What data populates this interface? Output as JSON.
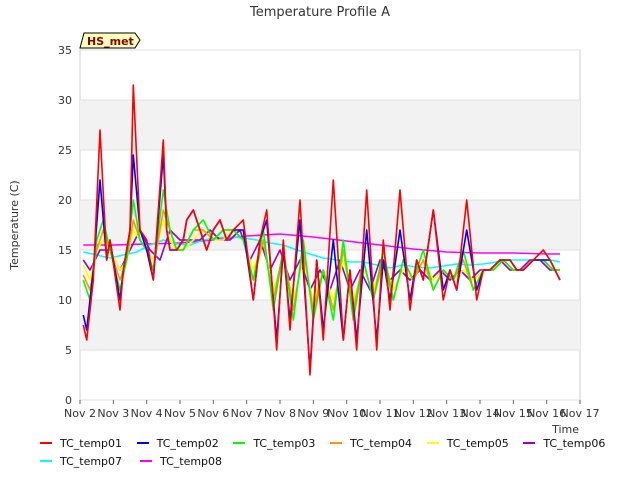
{
  "chart_data": {
    "type": "line",
    "title": "Temperature Profile A",
    "ylabel": "Temperature (C)",
    "xlabel": "Time",
    "badge": "HS_met",
    "ylim": [
      0,
      35
    ],
    "yticks": [
      0,
      5,
      10,
      15,
      20,
      25,
      30,
      35
    ],
    "xlim": [
      0,
      15
    ],
    "xtick_labels": [
      "Nov 2",
      "Nov 3",
      "Nov 4",
      "Nov 5",
      "Nov 6",
      "Nov 7",
      "Nov 8",
      "Nov 9",
      "Nov 10",
      "Nov 11",
      "Nov 12",
      "Nov 13",
      "Nov 14",
      "Nov 15",
      "Nov 16",
      "Nov 17"
    ],
    "grid": true,
    "legend_position": "bottom",
    "series": [
      {
        "name": "TC_temp01",
        "color": "#ff0000",
        "x": [
          0.1,
          0.2,
          0.4,
          0.6,
          0.8,
          0.9,
          1.2,
          1.3,
          1.5,
          1.6,
          1.8,
          2.0,
          2.2,
          2.5,
          2.6,
          2.7,
          2.9,
          3.1,
          3.2,
          3.4,
          3.6,
          3.8,
          4.0,
          4.2,
          4.4,
          4.6,
          4.9,
          5.2,
          5.4,
          5.6,
          5.9,
          6.1,
          6.3,
          6.6,
          6.9,
          7.1,
          7.3,
          7.6,
          7.9,
          8.1,
          8.3,
          8.6,
          8.9,
          9.1,
          9.3,
          9.6,
          9.9,
          10.1,
          10.3,
          10.6,
          10.9,
          11.1,
          11.3,
          11.6,
          11.9,
          12.1,
          12.3,
          12.6,
          12.9,
          13.1,
          13.3,
          13.6,
          13.9,
          14.1,
          14.4
        ],
        "values": [
          7.5,
          6,
          12,
          27,
          14,
          16,
          9,
          13,
          17,
          31.5,
          17,
          16,
          12,
          26,
          17,
          15,
          15,
          16,
          18,
          19,
          17,
          15,
          17,
          18,
          16,
          17,
          18,
          10,
          16,
          19,
          5,
          16,
          7,
          20,
          2.5,
          14,
          6,
          22,
          6,
          13,
          5,
          21,
          5,
          16,
          9,
          21,
          9,
          14,
          12,
          19,
          10,
          13,
          11,
          20,
          10,
          13,
          13,
          14,
          14,
          13,
          13,
          14,
          15,
          14,
          12
        ]
      },
      {
        "name": "TC_temp02",
        "color": "#0000ff",
        "x": [
          0.1,
          0.2,
          0.4,
          0.6,
          0.8,
          0.9,
          1.2,
          1.3,
          1.5,
          1.6,
          1.8,
          2.0,
          2.2,
          2.5,
          2.6,
          2.7,
          2.9,
          3.1,
          3.2,
          3.4,
          3.6,
          3.8,
          4.0,
          4.2,
          4.4,
          4.6,
          4.9,
          5.2,
          5.4,
          5.6,
          5.9,
          6.1,
          6.3,
          6.6,
          6.9,
          7.1,
          7.3,
          7.6,
          7.9,
          8.1,
          8.3,
          8.6,
          8.9,
          9.1,
          9.3,
          9.6,
          9.9,
          10.1,
          10.3,
          10.6,
          10.9,
          11.1,
          11.3,
          11.6,
          11.9,
          12.1,
          12.3,
          12.6,
          12.9,
          13.1,
          13.3,
          13.6,
          13.9,
          14.1,
          14.4
        ],
        "values": [
          8.5,
          7,
          13,
          22,
          14,
          16,
          10,
          13,
          17,
          24.5,
          17,
          15,
          12,
          24.5,
          17,
          15,
          15,
          16,
          18,
          19,
          17,
          15,
          17,
          18,
          16,
          17,
          17,
          10,
          16,
          18,
          6,
          15,
          8,
          18,
          3,
          14,
          7,
          16,
          6,
          13,
          6,
          17,
          6,
          14,
          10,
          17,
          10,
          14,
          12,
          19,
          11,
          13,
          11,
          17,
          11,
          13,
          13,
          14,
          14,
          13,
          13,
          14,
          14,
          14,
          12
        ]
      },
      {
        "name": "TC_temp03",
        "color": "#00ff00",
        "x": [
          0.1,
          0.3,
          0.5,
          0.7,
          0.9,
          1.2,
          1.4,
          1.6,
          1.8,
          2.0,
          2.2,
          2.5,
          2.7,
          2.9,
          3.1,
          3.4,
          3.7,
          4.0,
          4.3,
          4.6,
          4.9,
          5.2,
          5.5,
          5.8,
          6.1,
          6.4,
          6.7,
          7.0,
          7.3,
          7.6,
          7.9,
          8.2,
          8.5,
          8.8,
          9.1,
          9.4,
          9.7,
          10.0,
          10.3,
          10.6,
          10.9,
          11.2,
          11.5,
          11.8,
          12.1,
          12.4,
          12.7,
          13.0,
          13.3,
          13.6,
          13.9,
          14.2,
          14.4
        ],
        "values": [
          12,
          10,
          16,
          18,
          15,
          11,
          14,
          20,
          16,
          15,
          13,
          21,
          17,
          15,
          15,
          17,
          18,
          16,
          17,
          17,
          16,
          12,
          17,
          9,
          15,
          8,
          16,
          8,
          13,
          8,
          16,
          8,
          14,
          10,
          15,
          10,
          14,
          12,
          15,
          11,
          13,
          12,
          15,
          11,
          13,
          13,
          14,
          13,
          13,
          14,
          14,
          13,
          13
        ]
      },
      {
        "name": "TC_temp04",
        "color": "#ff9900",
        "x": [
          0.1,
          0.3,
          0.5,
          0.7,
          0.9,
          1.2,
          1.4,
          1.6,
          1.8,
          2.0,
          2.2,
          2.5,
          2.7,
          2.9,
          3.1,
          3.4,
          3.7,
          4.0,
          4.3,
          4.6,
          4.9,
          5.2,
          5.5,
          5.8,
          6.1,
          6.4,
          6.7,
          7.0,
          7.3,
          7.6,
          7.9,
          8.2,
          8.5,
          8.8,
          9.1,
          9.4,
          9.7,
          10.0,
          10.3,
          10.6,
          10.9,
          11.2,
          11.5,
          11.8,
          12.1,
          12.4,
          12.7,
          13.0,
          13.3,
          13.6,
          13.9,
          14.2,
          14.4
        ],
        "values": [
          12.5,
          11,
          15,
          17,
          15,
          12,
          14,
          18,
          16,
          15,
          13,
          19,
          17,
          15,
          15,
          17,
          17,
          16,
          17,
          17,
          16,
          12,
          16,
          10,
          15,
          9,
          15,
          9,
          13,
          9,
          15,
          9,
          14,
          10,
          14,
          10,
          14,
          12,
          14,
          11,
          13,
          12,
          14,
          11,
          13,
          13,
          14,
          13,
          13,
          14,
          14,
          13,
          13
        ]
      },
      {
        "name": "TC_temp05",
        "color": "#ffff00",
        "x": [
          0.1,
          0.3,
          0.5,
          0.7,
          0.9,
          1.2,
          1.4,
          1.6,
          1.8,
          2.0,
          2.2,
          2.5,
          2.7,
          2.9,
          3.1,
          3.4,
          3.7,
          4.0,
          4.3,
          4.6,
          4.9,
          5.2,
          5.5,
          5.8,
          6.1,
          6.4,
          6.7,
          7.0,
          7.3,
          7.6,
          7.9,
          8.2,
          8.5,
          8.8,
          9.1,
          9.4,
          9.7,
          10.0,
          10.3,
          10.6,
          10.9,
          11.2,
          11.5,
          11.8,
          12.1,
          12.4,
          12.7,
          13.0,
          13.3,
          13.6,
          13.9,
          14.2,
          14.4
        ],
        "values": [
          13.5,
          12,
          15,
          16,
          15,
          13,
          14,
          17,
          16,
          15,
          14,
          18,
          16,
          15,
          15,
          16,
          17,
          16,
          16,
          17,
          16,
          13,
          16,
          11,
          14,
          10,
          14,
          10,
          13,
          10,
          14,
          10,
          13,
          11,
          14,
          11,
          13,
          12,
          14,
          12,
          13,
          12,
          13,
          12,
          13,
          13,
          14,
          13,
          13,
          14,
          14,
          13,
          13
        ]
      },
      {
        "name": "TC_temp06",
        "color": "#9900cc",
        "x": [
          0.1,
          0.3,
          0.6,
          0.9,
          1.2,
          1.5,
          1.8,
          2.1,
          2.4,
          2.7,
          3.0,
          3.3,
          3.6,
          3.9,
          4.2,
          4.5,
          4.8,
          5.1,
          5.4,
          5.7,
          6.0,
          6.3,
          6.6,
          6.9,
          7.2,
          7.5,
          7.8,
          8.1,
          8.4,
          8.7,
          9.0,
          9.3,
          9.6,
          9.9,
          10.2,
          10.5,
          10.8,
          11.1,
          11.4,
          11.7,
          12.0,
          12.3,
          12.6,
          12.9,
          13.2,
          13.5,
          13.8,
          14.1,
          14.4
        ],
        "values": [
          14,
          13,
          15,
          15,
          13,
          15,
          17,
          15,
          14,
          17,
          16,
          16,
          16,
          17,
          16,
          16,
          17,
          14,
          16,
          13,
          15,
          12,
          14,
          11,
          13,
          11,
          14,
          11,
          13,
          11,
          14,
          12,
          13,
          12,
          13,
          12,
          13,
          12,
          13,
          12,
          13,
          13,
          14,
          13,
          13,
          14,
          14,
          13,
          13
        ]
      },
      {
        "name": "TC_temp07",
        "color": "#00ffff",
        "x": [
          0.1,
          0.5,
          0.9,
          1.3,
          1.7,
          2.1,
          2.5,
          2.9,
          3.3,
          3.7,
          4.1,
          4.5,
          4.9,
          5.3,
          5.7,
          6.1,
          6.5,
          6.9,
          7.3,
          7.7,
          8.1,
          8.5,
          8.9,
          9.3,
          9.7,
          10.1,
          10.5,
          10.9,
          11.3,
          11.7,
          12.1,
          12.5,
          12.9,
          13.3,
          13.7,
          14.1,
          14.4
        ],
        "values": [
          14.8,
          14.5,
          14.2,
          14.5,
          14.8,
          15.5,
          16,
          15.6,
          15.5,
          16,
          16.2,
          16.3,
          16.2,
          16,
          15.7,
          15.5,
          15,
          14.6,
          14.2,
          14,
          13.8,
          13.8,
          13.5,
          13.2,
          13.5,
          13.3,
          13.2,
          13.4,
          13.6,
          13.5,
          13.6,
          13.8,
          14,
          14,
          14,
          14,
          13.8
        ]
      },
      {
        "name": "TC_temp08",
        "color": "#ff00ff",
        "x": [
          0.1,
          1.0,
          2.0,
          3.0,
          4.0,
          5.0,
          6.0,
          7.0,
          8.0,
          9.0,
          10.0,
          11.0,
          12.0,
          13.0,
          14.0,
          14.4
        ],
        "values": [
          15.5,
          15.5,
          15.6,
          15.7,
          16.0,
          16.4,
          16.6,
          16.3,
          15.9,
          15.5,
          15.1,
          14.8,
          14.7,
          14.7,
          14.6,
          14.6
        ]
      }
    ]
  }
}
